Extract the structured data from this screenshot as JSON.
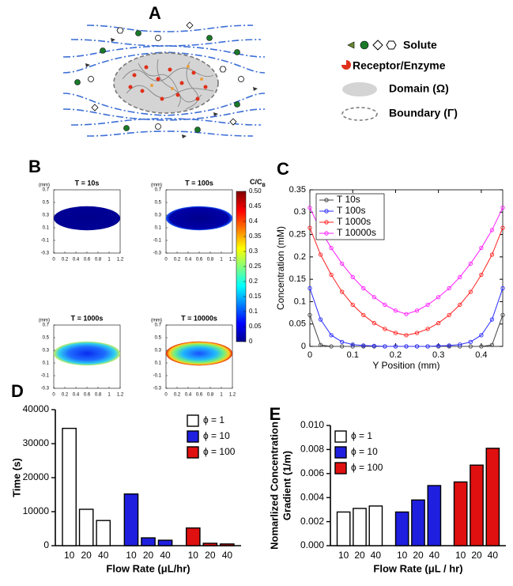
{
  "panel_labels": [
    "A",
    "B",
    "C",
    "D",
    "E"
  ],
  "diagram": {
    "legend": [
      "Solute",
      "Receptor/Enzyme",
      "Domain (Ω)",
      "Boundary (Γ)"
    ]
  },
  "heatmaps": {
    "titles": [
      "T = 10s",
      "T = 100s",
      "T = 1000s",
      "T = 10000s"
    ],
    "unit": "(mm)",
    "xlim": [
      0,
      1.2
    ],
    "ylim": [
      -0.3,
      0.7
    ],
    "xticks": [
      0,
      0.2,
      0.4,
      0.6,
      0.8,
      1,
      1.2
    ],
    "yticks": [
      0.7,
      0.5,
      0.3,
      0.1,
      -0.1,
      -0.3
    ],
    "colorbar": {
      "label": "C/C",
      "label_sub": "B",
      "lim": [
        0,
        0.5
      ],
      "ticks": [
        {
          "value": 0.5,
          "label": "0.50"
        },
        0.45,
        0.4,
        0.35,
        0.3,
        0.25,
        0.2,
        0.15,
        0.1,
        0.05,
        0
      ]
    }
  },
  "chart_data": [
    {
      "type": "line",
      "x_label": "Y Position (mm)",
      "y_label": "Concentration (mM)",
      "x": [
        0,
        0.025,
        0.05,
        0.075,
        0.1,
        0.125,
        0.15,
        0.175,
        0.2,
        0.225,
        0.25,
        0.275,
        0.3,
        0.325,
        0.35,
        0.375,
        0.4,
        0.425,
        0.45
      ],
      "xlim": [
        0,
        0.45
      ],
      "ylim": [
        0,
        0.35
      ],
      "xticks": [
        0,
        0.1,
        0.2,
        0.3,
        0.4
      ],
      "yticks": [
        0,
        0.05,
        0.1,
        0.15,
        0.2,
        0.25,
        0.3,
        0.35
      ],
      "legend": "upper left",
      "series": [
        {
          "name": "T 10s",
          "color": "#444444",
          "values": [
            0.07,
            0.003,
            0,
            0,
            0,
            0,
            0,
            0,
            0,
            0,
            0,
            0,
            0,
            0,
            0,
            0,
            0,
            0.003,
            0.07
          ]
        },
        {
          "name": "T 100s",
          "color": "#2a2aff",
          "values": [
            0.13,
            0.06,
            0.025,
            0.01,
            0.004,
            0.002,
            0.001,
            0,
            0,
            0,
            0,
            0,
            0.001,
            0.002,
            0.004,
            0.01,
            0.025,
            0.06,
            0.13
          ]
        },
        {
          "name": "T 1000s",
          "color": "#ff2020",
          "values": [
            0.265,
            0.205,
            0.16,
            0.122,
            0.093,
            0.07,
            0.052,
            0.039,
            0.03,
            0.025,
            0.03,
            0.039,
            0.052,
            0.07,
            0.093,
            0.122,
            0.16,
            0.205,
            0.265
          ]
        },
        {
          "name": "T 10000s",
          "color": "#ff20ff",
          "values": [
            0.31,
            0.26,
            0.22,
            0.185,
            0.155,
            0.13,
            0.11,
            0.093,
            0.08,
            0.072,
            0.08,
            0.093,
            0.11,
            0.13,
            0.155,
            0.185,
            0.22,
            0.26,
            0.31
          ]
        }
      ]
    },
    {
      "type": "bar",
      "x_label": "Flow Rate (μL/hr)",
      "y_label": "Time (s)",
      "categories": [
        "10",
        "20",
        "40"
      ],
      "ylim": [
        0,
        40000
      ],
      "yticks": [
        0,
        10000,
        20000,
        30000,
        40000
      ],
      "legend": "upper right",
      "series": [
        {
          "name": "ϕ = 1",
          "color": "#ffffff",
          "values": [
            34500,
            10700,
            7400
          ]
        },
        {
          "name": "ϕ = 10",
          "color": "#1f1fe0",
          "values": [
            15200,
            2300,
            1600
          ]
        },
        {
          "name": "ϕ = 100",
          "color": "#e01010",
          "values": [
            5200,
            700,
            500
          ]
        }
      ]
    },
    {
      "type": "bar",
      "x_label": "Flow Rate (μL / hr)",
      "y_label": [
        "Nomarlized Concentration",
        "Gradient (1/m)"
      ],
      "categories": [
        "10",
        "20",
        "40"
      ],
      "ylim": [
        0,
        0.01
      ],
      "yticks": [
        {
          "value": 0,
          "label": "0.000"
        },
        {
          "value": 0.002,
          "label": "0.002"
        },
        {
          "value": 0.004,
          "label": "0.004"
        },
        {
          "value": 0.006,
          "label": "0.006"
        },
        {
          "value": 0.008,
          "label": "0.008"
        },
        {
          "value": 0.01,
          "label": "0.010"
        }
      ],
      "legend": "upper left",
      "series": [
        {
          "name": "ϕ = 1",
          "color": "#ffffff",
          "values": [
            0.0028,
            0.0031,
            0.0033
          ]
        },
        {
          "name": "ϕ = 10",
          "color": "#1f1fe0",
          "values": [
            0.0028,
            0.0038,
            0.005
          ]
        },
        {
          "name": "ϕ = 100",
          "color": "#e01010",
          "values": [
            0.0053,
            0.0067,
            0.0081
          ]
        }
      ]
    }
  ]
}
